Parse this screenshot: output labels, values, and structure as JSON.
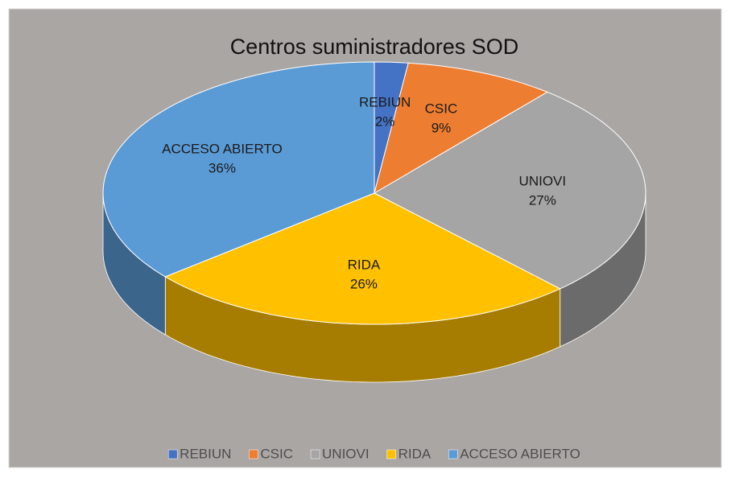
{
  "chart_data": {
    "type": "pie",
    "title": "Centros suministradores SOD",
    "categories": [
      "REBIUN",
      "CSIC",
      "UNIOVI",
      "RIDA",
      "ACCESO ABIERTO"
    ],
    "values": [
      2,
      9,
      27,
      26,
      36
    ],
    "value_labels": [
      "2%",
      "9%",
      "27%",
      "26%",
      "36%"
    ],
    "colors": [
      "#4472c4",
      "#ed7d31",
      "#a5a5a5",
      "#ffc000",
      "#5b9bd5"
    ],
    "legend": "bottom"
  }
}
